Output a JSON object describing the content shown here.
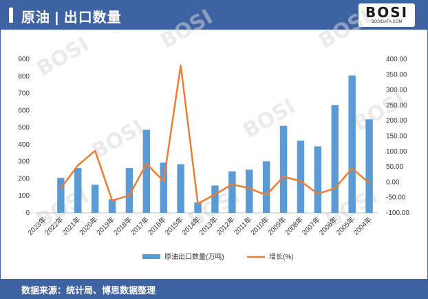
{
  "header": {
    "title": "原油 | 出口数量"
  },
  "logo": {
    "name": "BOSI",
    "site": "BOSIDATA.COM"
  },
  "footer": {
    "source": "数据来源：统计局、博思数据整理"
  },
  "colors": {
    "accent": "#3e63a2",
    "bar": "#5b9bd5",
    "line": "#ed7d31"
  },
  "chart_data": {
    "type": "bar",
    "categories": [
      "2023年",
      "2022年",
      "2021年",
      "2020年",
      "2019年",
      "2018年",
      "2017年",
      "2016年",
      "2015年",
      "2014年",
      "2013年",
      "2012年",
      "2011年",
      "2010年",
      "2009年",
      "2008年",
      "2007年",
      "2006年",
      "2005年",
      "2004年"
    ],
    "series": [
      {
        "name": "原油出口数量(万吨)",
        "type": "bar",
        "axis": "left",
        "values": [
          null,
          205,
          262,
          165,
          80,
          262,
          487,
          295,
          285,
          62,
          160,
          243,
          253,
          302,
          510,
          423,
          390,
          632,
          805,
          548
        ]
      },
      {
        "name": "增长(%)",
        "type": "line",
        "axis": "right",
        "values": [
          null,
          -20,
          55,
          102,
          -60,
          -43,
          60,
          3,
          380,
          -70,
          -40,
          -7,
          -20,
          -42,
          18,
          3,
          -38,
          -20,
          45,
          -3
        ]
      }
    ],
    "yLeft": {
      "min": 0,
      "max": 900,
      "step": 100,
      "ticks": [
        "0",
        "100",
        "200",
        "300",
        "400",
        "500",
        "600",
        "700",
        "800",
        "900"
      ]
    },
    "yRight": {
      "min": -100,
      "max": 400,
      "step": 50,
      "ticks": [
        "-100.00",
        "-50.00",
        "0.00",
        "50.00",
        "100.00",
        "150.00",
        "200.00",
        "250.00",
        "300.00",
        "350.00",
        "400.00"
      ]
    },
    "legend": {
      "position": "bottom"
    },
    "grid": false
  }
}
